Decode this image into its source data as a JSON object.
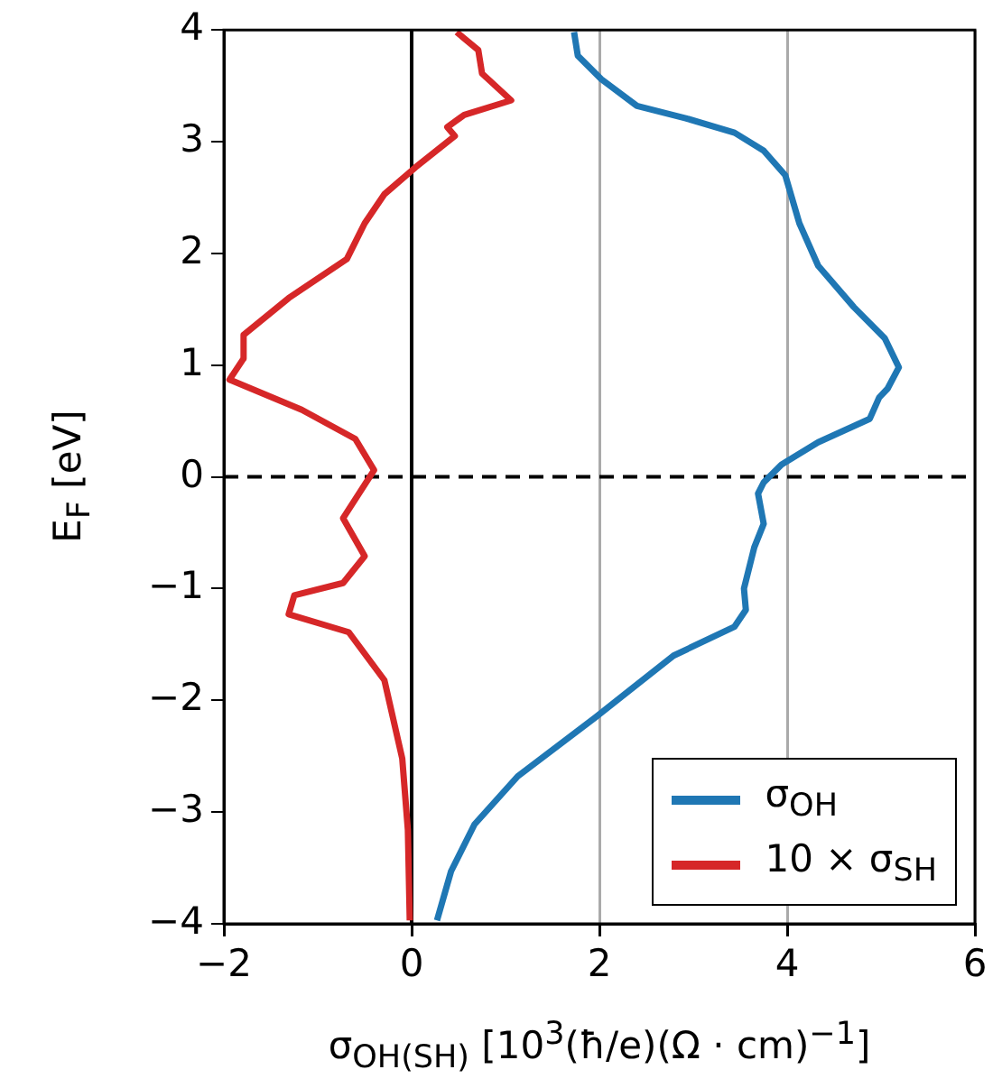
{
  "chart_data": {
    "type": "line",
    "xlabel": "σ$_{OH(SH)}$ [10$^{3}$(ħ/e)(Ω · cm)$^{−1}$]",
    "ylabel": "E$_{F}$ [eV]",
    "xlim": [
      -2,
      6
    ],
    "xticks": [
      {
        "value": -2,
        "label": "−2"
      },
      0,
      2,
      4,
      6
    ],
    "ylim": [
      -4,
      4
    ],
    "yticks": [
      {
        "value": -4,
        "label": "−4"
      },
      {
        "value": -3,
        "label": "−3"
      },
      {
        "value": -2,
        "label": "−2"
      },
      {
        "value": -1,
        "label": "−1"
      },
      0,
      1,
      2,
      3,
      4
    ],
    "grid": "x",
    "legend": "bottom right",
    "ref_lines": [
      {
        "axis": "x",
        "value": 0,
        "color": "#000000",
        "line_style": "solid"
      },
      {
        "axis": "y",
        "value": 0,
        "color": "#000000",
        "line_style": "dashed"
      }
    ],
    "series": [
      {
        "name": "σ$_{OH}$",
        "color": "#1f77b4",
        "x": [
          1.73,
          1.77,
          2.02,
          2.4,
          2.92,
          3.44,
          3.75,
          3.98,
          4.13,
          4.33,
          4.71,
          5.04,
          5.19,
          5.07,
          4.98,
          4.88,
          4.33,
          3.94,
          3.75,
          3.69,
          3.75,
          3.65,
          3.54,
          3.56,
          3.44,
          2.79,
          1.96,
          1.13,
          0.67,
          0.42,
          0.27
        ],
        "values": [
          3.98,
          3.77,
          3.56,
          3.32,
          3.21,
          3.08,
          2.92,
          2.7,
          2.27,
          1.89,
          1.52,
          1.24,
          0.98,
          0.79,
          0.71,
          0.52,
          0.31,
          0.11,
          -0.05,
          -0.15,
          -0.42,
          -0.63,
          -1.0,
          -1.19,
          -1.34,
          -1.6,
          -2.15,
          -2.68,
          -3.11,
          -3.53,
          -3.97
        ]
      },
      {
        "name": "10 × σ$_{SH}$",
        "color": "#d62728",
        "x": [
          0.48,
          0.71,
          0.75,
          1.06,
          0.56,
          0.38,
          0.46,
          0.04,
          -0.29,
          -0.5,
          -0.69,
          -1.31,
          -1.79,
          -1.79,
          -1.94,
          -1.17,
          -0.6,
          -0.4,
          -0.73,
          -0.5,
          -0.73,
          -1.25,
          -1.31,
          -0.67,
          -0.29,
          -0.1,
          -0.04,
          -0.02
        ],
        "values": [
          3.98,
          3.82,
          3.61,
          3.37,
          3.24,
          3.13,
          3.05,
          2.77,
          2.53,
          2.27,
          1.95,
          1.6,
          1.27,
          1.06,
          0.87,
          0.6,
          0.34,
          0.06,
          -0.37,
          -0.71,
          -0.95,
          -1.06,
          -1.23,
          -1.39,
          -1.82,
          -2.52,
          -3.16,
          -3.97
        ]
      }
    ]
  }
}
